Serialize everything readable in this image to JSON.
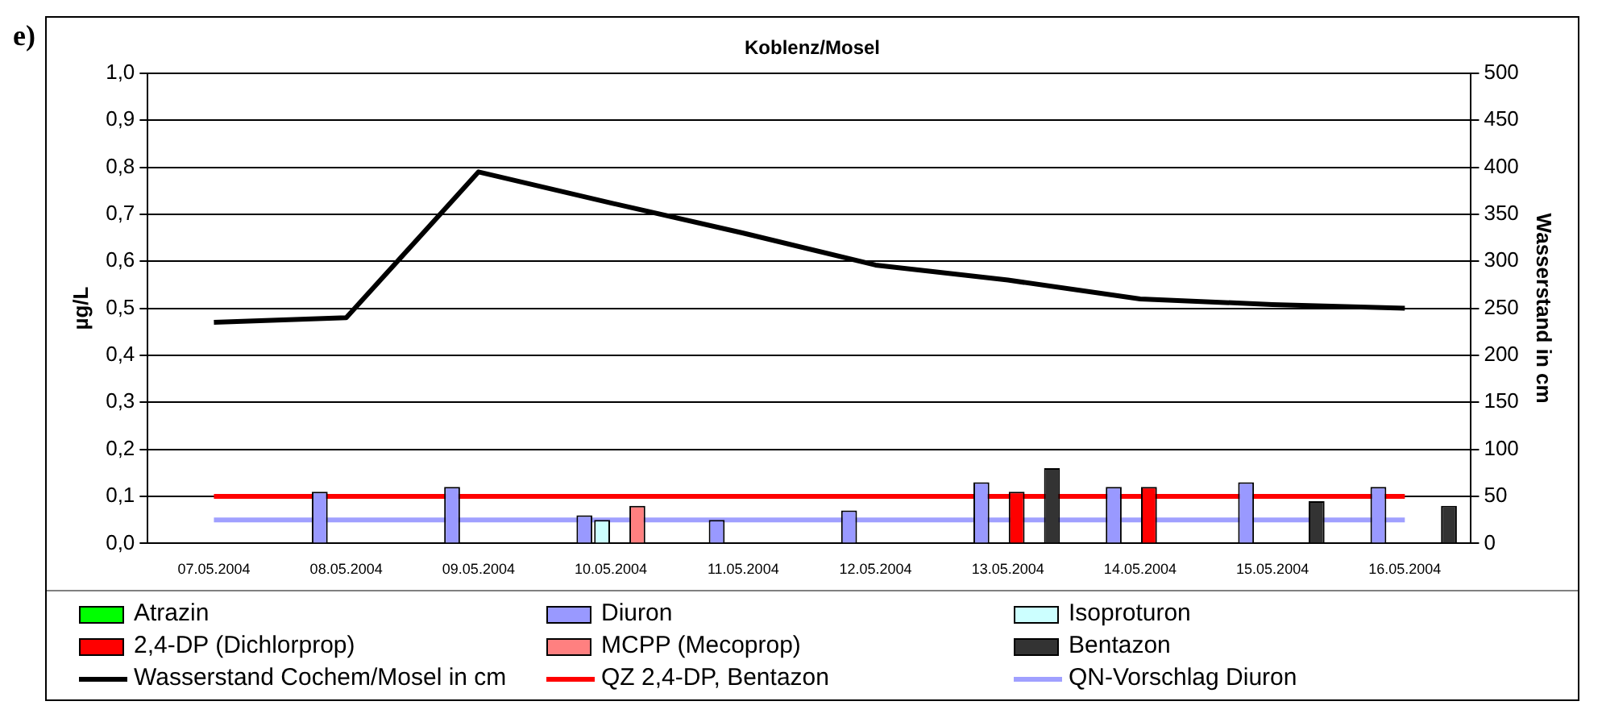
{
  "chart_data": {
    "type": "bar",
    "title": "Koblenz/Mosel",
    "ylabel": "µg/L",
    "y2label": "Wasserstand in cm",
    "annotations": [
      "e)"
    ],
    "categories": [
      "07.05.2004",
      "08.05.2004",
      "09.05.2004",
      "10.05.2004",
      "11.05.2004",
      "12.05.2004",
      "13.05.2004",
      "14.05.2004",
      "15.05.2004",
      "16.05.2004"
    ],
    "series": [
      {
        "name": "Atrazin",
        "color": "#00ff00",
        "values": [
          null,
          null,
          null,
          null,
          null,
          null,
          null,
          null,
          null,
          null
        ]
      },
      {
        "name": "Diuron",
        "color": "#9999ff",
        "values": [
          null,
          0.11,
          0.12,
          0.06,
          0.05,
          0.07,
          0.13,
          0.12,
          0.13,
          0.12
        ]
      },
      {
        "name": "Isoproturon",
        "color": "#ccffff",
        "values": [
          null,
          null,
          null,
          0.05,
          null,
          null,
          null,
          null,
          null,
          null
        ]
      },
      {
        "name": "2,4-DP (Dichlorprop)",
        "color": "#ff0000",
        "values": [
          null,
          null,
          null,
          null,
          null,
          null,
          0.11,
          0.12,
          null,
          null
        ]
      },
      {
        "name": "MCPP (Mecoprop)",
        "color": "#ff8080",
        "values": [
          null,
          null,
          null,
          0.08,
          null,
          null,
          null,
          null,
          null,
          null
        ]
      },
      {
        "name": "Bentazon",
        "color": "#333333",
        "values": [
          null,
          null,
          null,
          null,
          null,
          null,
          0.16,
          null,
          0.09,
          0.08
        ]
      },
      {
        "name": "Wasserstand Cochem/Mosel in cm",
        "type": "line",
        "axis": "y2",
        "color": "#000000",
        "values": [
          235,
          240,
          395,
          362,
          330,
          296,
          280,
          260,
          254,
          250
        ]
      },
      {
        "name": "QZ 2,4-DP, Bentazon",
        "type": "line",
        "color": "#ff0000",
        "values": [
          0.1,
          0.1,
          0.1,
          0.1,
          0.1,
          0.1,
          0.1,
          0.1,
          0.1,
          0.1
        ]
      },
      {
        "name": "QN-Vorschlag Diuron",
        "type": "line",
        "color": "#a0a0ff",
        "values": [
          0.05,
          0.05,
          0.05,
          0.05,
          0.05,
          0.05,
          0.05,
          0.05,
          0.05,
          0.05
        ]
      }
    ],
    "ylim": [
      0,
      1
    ],
    "yticks": [
      {
        "value": 0,
        "label": "0,0"
      },
      {
        "value": 0.1,
        "label": "0,1"
      },
      {
        "value": 0.2,
        "label": "0,2"
      },
      {
        "value": 0.3,
        "label": "0,3"
      },
      {
        "value": 0.4,
        "label": "0,4"
      },
      {
        "value": 0.5,
        "label": "0,5"
      },
      {
        "value": 0.6,
        "label": "0,6"
      },
      {
        "value": 0.7,
        "label": "0,7"
      },
      {
        "value": 0.8,
        "label": "0,8"
      },
      {
        "value": 0.9,
        "label": "0,9"
      },
      {
        "value": 1,
        "label": "1,0"
      }
    ],
    "y2lim": [
      0,
      500
    ],
    "y2ticks": [
      0,
      50,
      100,
      150,
      200,
      250,
      300,
      350,
      400,
      450,
      500
    ],
    "grid": "y",
    "legend": "bottom",
    "marker": "none",
    "line_style": "solid"
  }
}
